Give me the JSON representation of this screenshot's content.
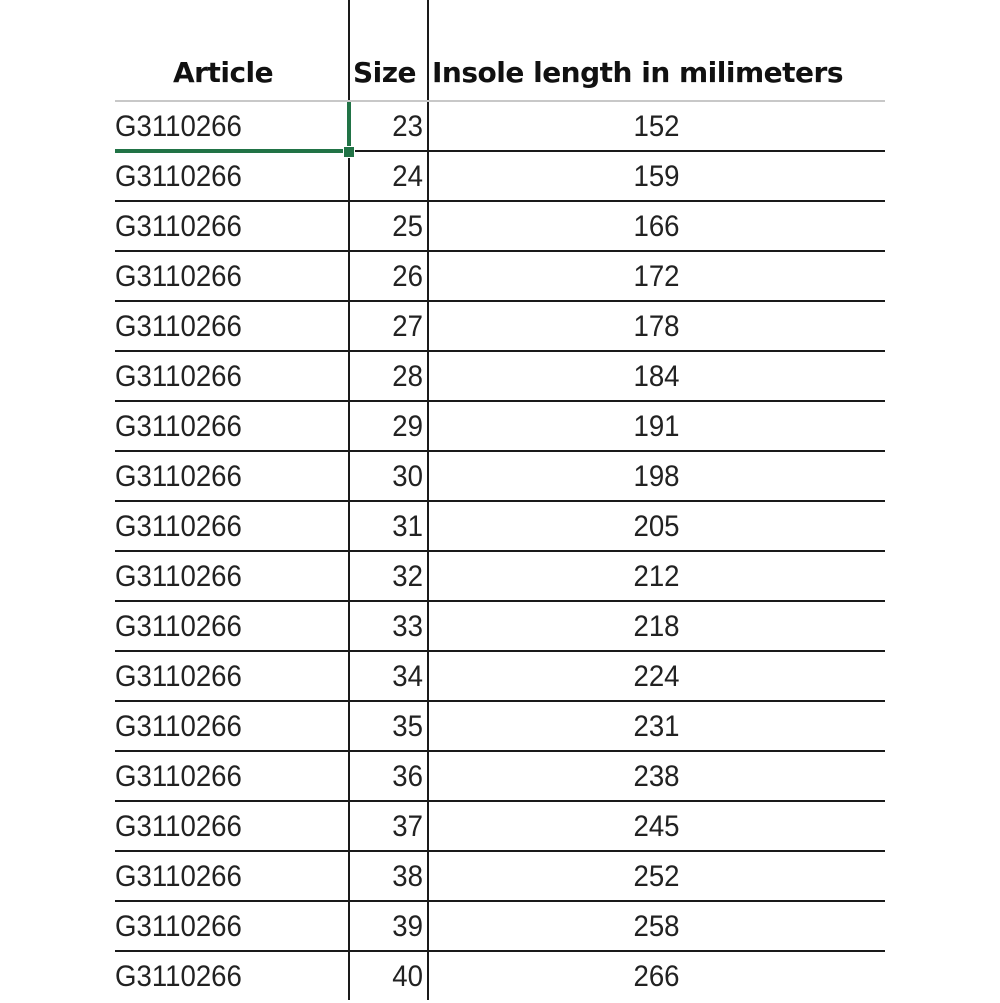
{
  "headers": {
    "article": "Article",
    "size": "Size",
    "insole": "Insole length in milimeters"
  },
  "rows": [
    {
      "article": "G3110266",
      "size": "23",
      "insole": "152"
    },
    {
      "article": "G3110266",
      "size": "24",
      "insole": "159"
    },
    {
      "article": "G3110266",
      "size": "25",
      "insole": "166"
    },
    {
      "article": "G3110266",
      "size": "26",
      "insole": "172"
    },
    {
      "article": "G3110266",
      "size": "27",
      "insole": "178"
    },
    {
      "article": "G3110266",
      "size": "28",
      "insole": "184"
    },
    {
      "article": "G3110266",
      "size": "29",
      "insole": "191"
    },
    {
      "article": "G3110266",
      "size": "30",
      "insole": "198"
    },
    {
      "article": "G3110266",
      "size": "31",
      "insole": "205"
    },
    {
      "article": "G3110266",
      "size": "32",
      "insole": "212"
    },
    {
      "article": "G3110266",
      "size": "33",
      "insole": "218"
    },
    {
      "article": "G3110266",
      "size": "34",
      "insole": "224"
    },
    {
      "article": "G3110266",
      "size": "35",
      "insole": "231"
    },
    {
      "article": "G3110266",
      "size": "36",
      "insole": "238"
    },
    {
      "article": "G3110266",
      "size": "37",
      "insole": "245"
    },
    {
      "article": "G3110266",
      "size": "38",
      "insole": "252"
    },
    {
      "article": "G3110266",
      "size": "39",
      "insole": "258"
    },
    {
      "article": "G3110266",
      "size": "40",
      "insole": "266"
    }
  ],
  "selection_color": "#217346"
}
